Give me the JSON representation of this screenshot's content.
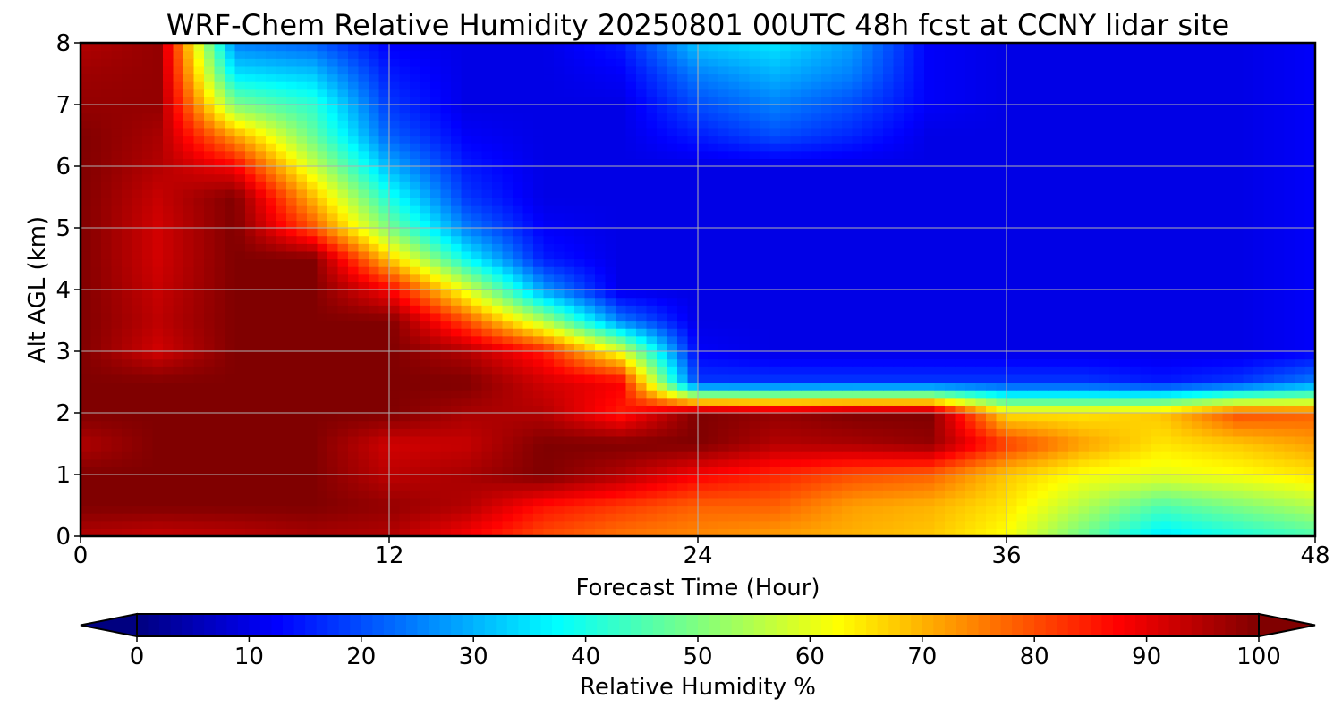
{
  "chart_data": {
    "type": "heatmap",
    "title": "WRF-Chem Relative Humidity 20250801 00UTC 48h fcst at CCNY lidar site",
    "xlabel": "Forecast Time (Hour)",
    "ylabel": "Alt AGL (km)",
    "xlim": [
      0,
      48
    ],
    "ylim": [
      0,
      8
    ],
    "x_ticks": [
      "0",
      "12",
      "24",
      "36",
      "48"
    ],
    "y_ticks": [
      "0",
      "1",
      "2",
      "3",
      "4",
      "5",
      "6",
      "7",
      "8"
    ],
    "grid": true,
    "colormap": "jet",
    "colorbar": {
      "label": "Relative Humidity %",
      "range": [
        0,
        100
      ],
      "ticks": [
        "0",
        "10",
        "20",
        "30",
        "40",
        "50",
        "60",
        "70",
        "80",
        "90",
        "100"
      ],
      "extend": "both",
      "orientation": "horizontal",
      "min_color": "#000080",
      "max_color": "#800000"
    },
    "x": [
      0,
      3,
      6,
      9,
      12,
      15,
      18,
      21,
      24,
      27,
      30,
      33,
      36,
      39,
      42,
      45,
      48
    ],
    "y": [
      0,
      0.5,
      1,
      1.5,
      2,
      2.5,
      3,
      3.5,
      4,
      4.5,
      5,
      5.5,
      6,
      6.5,
      7,
      7.5,
      8
    ],
    "z": [
      [
        95,
        93,
        94,
        96,
        95,
        88,
        80,
        76,
        74,
        72,
        70,
        68,
        62,
        48,
        35,
        40,
        45
      ],
      [
        100,
        100,
        100,
        100,
        98,
        95,
        86,
        82,
        78,
        78,
        72,
        70,
        65,
        55,
        45,
        50,
        55
      ],
      [
        100,
        100,
        100,
        100,
        94,
        96,
        100,
        95,
        88,
        84,
        80,
        78,
        68,
        62,
        60,
        62,
        65
      ],
      [
        95,
        100,
        100,
        100,
        92,
        93,
        100,
        100,
        100,
        95,
        96,
        98,
        82,
        72,
        65,
        68,
        72
      ],
      [
        100,
        100,
        100,
        100,
        100,
        96,
        95,
        85,
        100,
        98,
        100,
        100,
        65,
        65,
        68,
        80,
        78
      ],
      [
        100,
        100,
        100,
        100,
        100,
        100,
        92,
        88,
        18,
        18,
        18,
        18,
        18,
        18,
        15,
        18,
        25
      ],
      [
        100,
        92,
        100,
        100,
        100,
        95,
        85,
        60,
        12,
        10,
        10,
        10,
        10,
        10,
        10,
        10,
        12
      ],
      [
        100,
        94,
        100,
        100,
        100,
        80,
        55,
        25,
        10,
        10,
        10,
        10,
        10,
        10,
        10,
        10,
        12
      ],
      [
        100,
        93,
        100,
        100,
        88,
        60,
        28,
        10,
        10,
        10,
        10,
        10,
        10,
        10,
        10,
        10,
        12
      ],
      [
        100,
        92,
        100,
        100,
        68,
        38,
        15,
        10,
        10,
        10,
        10,
        10,
        10,
        10,
        10,
        10,
        12
      ],
      [
        100,
        92,
        100,
        80,
        50,
        25,
        12,
        10,
        10,
        10,
        10,
        10,
        10,
        10,
        10,
        10,
        12
      ],
      [
        100,
        93,
        100,
        70,
        40,
        18,
        10,
        10,
        10,
        10,
        10,
        10,
        10,
        10,
        10,
        10,
        12
      ],
      [
        100,
        95,
        88,
        58,
        30,
        15,
        10,
        10,
        10,
        10,
        10,
        10,
        10,
        10,
        10,
        10,
        12
      ],
      [
        100,
        96,
        72,
        48,
        22,
        12,
        10,
        10,
        15,
        20,
        16,
        10,
        10,
        10,
        10,
        10,
        12
      ],
      [
        98,
        98,
        50,
        42,
        18,
        10,
        10,
        10,
        20,
        25,
        20,
        12,
        10,
        10,
        10,
        10,
        12
      ],
      [
        97,
        98,
        35,
        32,
        15,
        10,
        10,
        12,
        25,
        30,
        25,
        12,
        10,
        10,
        10,
        10,
        12
      ],
      [
        95,
        98,
        25,
        22,
        12,
        10,
        10,
        15,
        32,
        35,
        28,
        12,
        10,
        10,
        10,
        10,
        12
      ]
    ]
  }
}
